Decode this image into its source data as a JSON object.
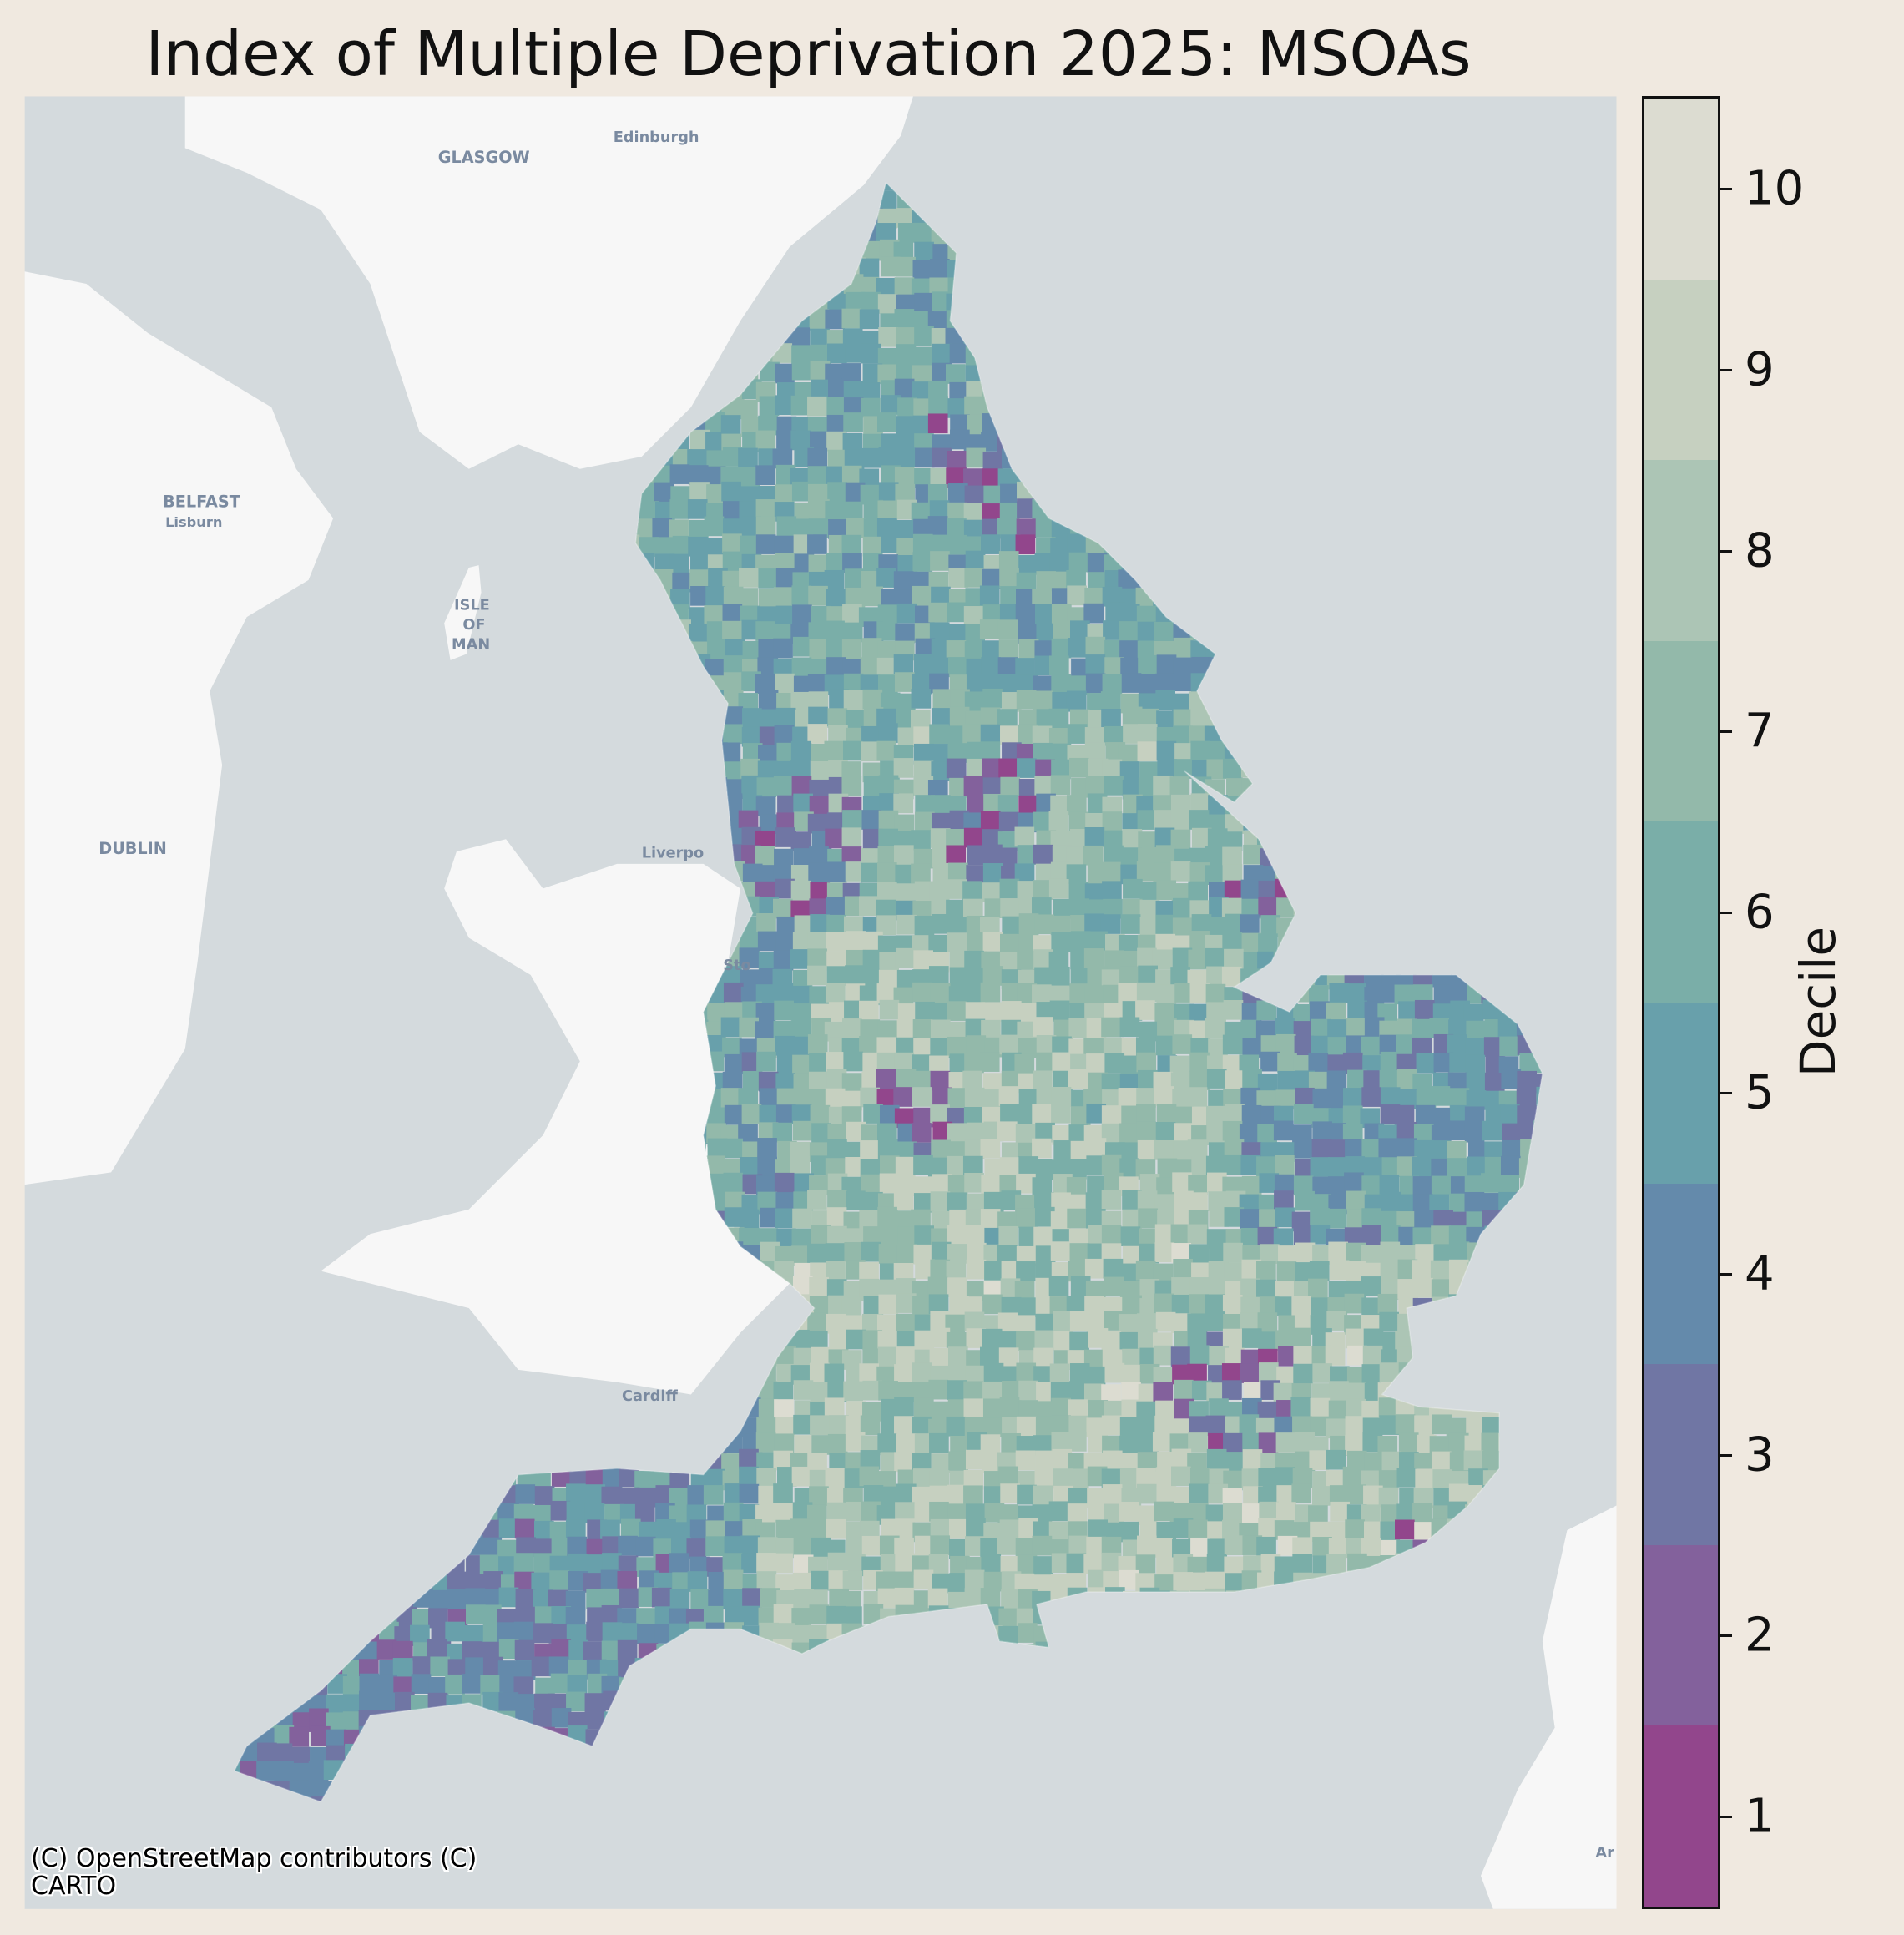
{
  "title": "Index of Multiple Deprivation 2025: MSOAs",
  "basemap_labels": {
    "glasgow": "GLASGOW",
    "edinburgh": "Edinburgh",
    "belfast": "BELFAST",
    "lisburn": "Lisburn",
    "isle1": "ISLE",
    "isle2": "OF",
    "isle3": "MAN",
    "dublin": "DUBLIN",
    "liverpool": "Liverpo",
    "stoke": "Sto",
    "cardiff": "Cardiff",
    "amsterdam_partial": "Ar"
  },
  "attribution_line1": "(C) OpenStreetMap contributors (C)",
  "attribution_line2": "CARTO",
  "colorbar": {
    "label": "Decile",
    "ticks": [
      "1",
      "2",
      "3",
      "4",
      "5",
      "6",
      "7",
      "8",
      "9",
      "10"
    ],
    "colors": [
      "#92468c",
      "#83619c",
      "#7076a4",
      "#648aab",
      "#68a0ab",
      "#7aaea8",
      "#93b9aa",
      "#acc5b5",
      "#c6d0c0",
      "#dcdcd1"
    ]
  },
  "colors": {
    "background": "#f0e9e0",
    "sea": "#d4dadd",
    "land": "#f7f7f7"
  }
}
